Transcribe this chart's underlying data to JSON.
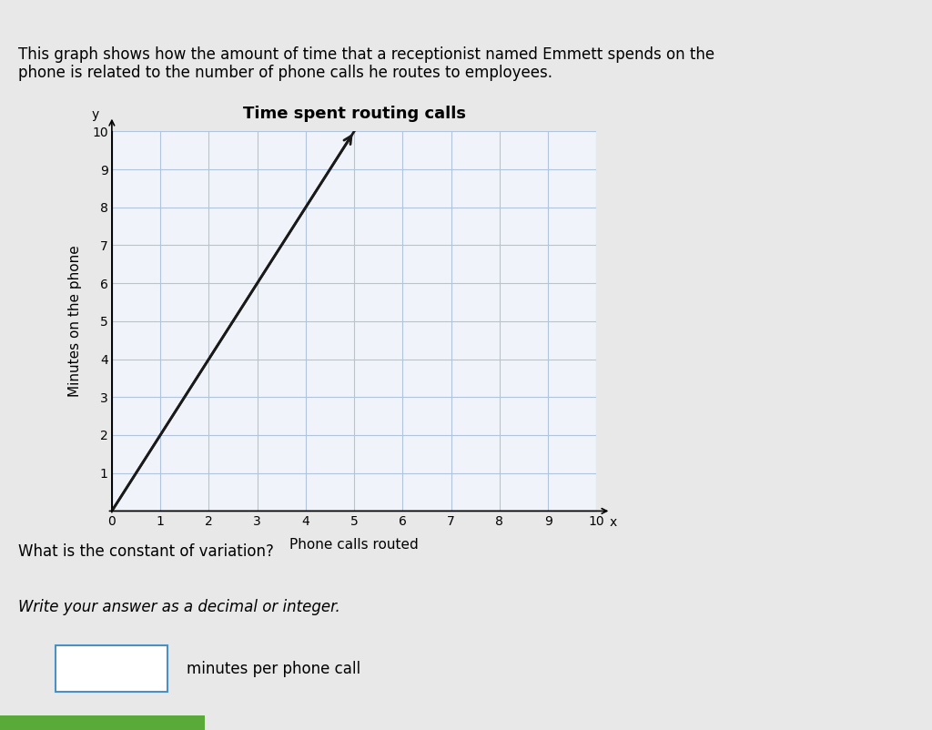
{
  "title": "Time spent routing calls",
  "xlabel": "Phone calls routed",
  "ylabel": "Minutes on the phone",
  "xlim": [
    0,
    10
  ],
  "ylim": [
    0,
    10
  ],
  "xticks": [
    0,
    1,
    2,
    3,
    4,
    5,
    6,
    7,
    8,
    9,
    10
  ],
  "yticks": [
    1,
    2,
    3,
    4,
    5,
    6,
    7,
    8,
    9,
    10
  ],
  "line_x": [
    0,
    5
  ],
  "line_y": [
    0,
    10
  ],
  "line_color": "#1a1a1a",
  "line_width": 2.0,
  "grid_color": "#b0c4de",
  "background_color": "#f0f4fa",
  "outer_bg": "#e8e8e8",
  "header_text": "This graph shows how the amount of time that a receptionist named Emmett spends on the\nphone is related to the number of phone calls he routes to employees.",
  "question_text": "What is the constant of variation?",
  "answer_prompt": "Write your answer as a decimal or integer.",
  "answer_unit": "minutes per phone call",
  "title_fontsize": 13,
  "axis_label_fontsize": 11,
  "tick_fontsize": 10,
  "header_fontsize": 12,
  "question_fontsize": 12,
  "answer_fontsize": 12
}
